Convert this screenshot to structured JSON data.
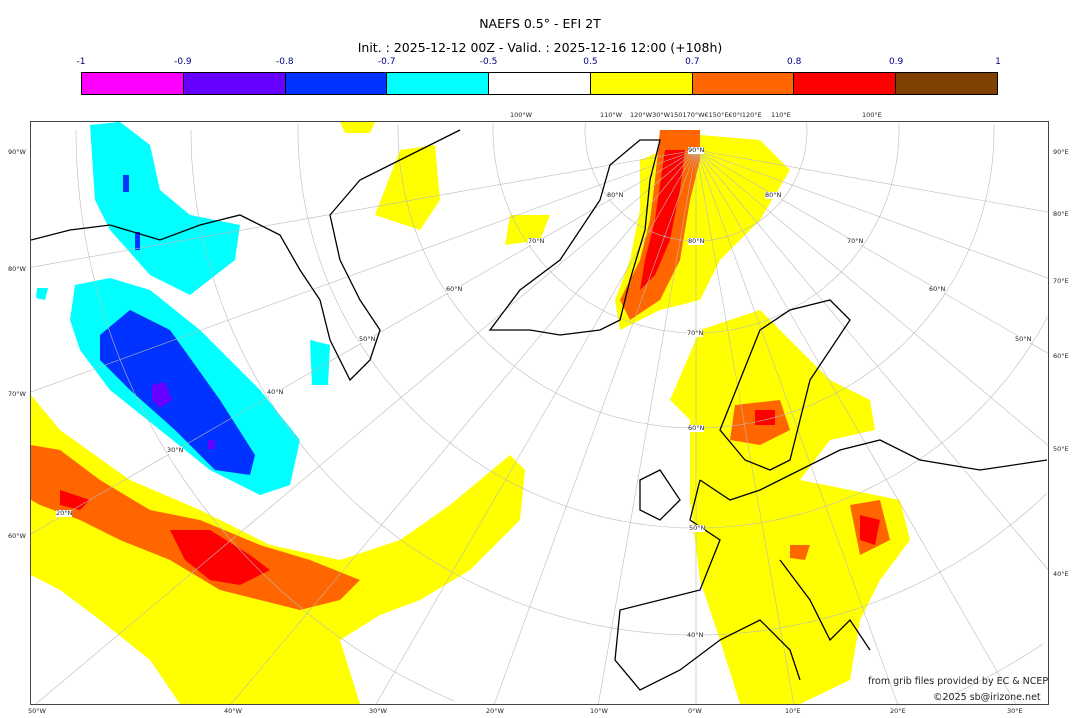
{
  "title": "NAEFS 0.5° - EFI 2T",
  "subtitle": "Init. : 2025-12-12 00Z - Valid. : 2025-12-16 12:00 (+108h)",
  "colorbar": {
    "ticks": [
      "-1",
      "-0.9",
      "-0.8",
      "-0.7",
      "-0.5",
      "0.5",
      "0.7",
      "0.8",
      "0.9",
      "1"
    ],
    "colors": [
      "#ff00ff",
      "#6600ff",
      "#0033ff",
      "#00ffff",
      "#ffffff",
      "#ffff00",
      "#ff6600",
      "#ff0000",
      "#804000"
    ]
  },
  "axes": {
    "left": [
      "90°W",
      "80°W",
      "70°W",
      "60°W"
    ],
    "right": [
      "90°E",
      "80°E",
      "70°E",
      "60°E",
      "50°E",
      "40°E"
    ],
    "bottom": [
      "50°W",
      "40°W",
      "30°W",
      "20°W",
      "10°W",
      "0°W",
      "10°E",
      "20°E",
      "30°E"
    ],
    "top": [
      "100°W",
      "110°W",
      "120°W30°W150170°W€150°E€0°I120°E",
      "110°E",
      "100°E"
    ],
    "interior": [
      "90°N",
      "80°N",
      "70°N",
      "60°N",
      "50°N",
      "40°N",
      "70°N",
      "60°N",
      "50°N",
      "40°N",
      "30°N",
      "20°N",
      "80°N",
      "70°N",
      "60°N",
      "50°N",
      "80°N"
    ]
  },
  "credits": {
    "source": "from grib files provided by EC & NCEP",
    "copyright": "©2025 sb@irizone.net"
  }
}
